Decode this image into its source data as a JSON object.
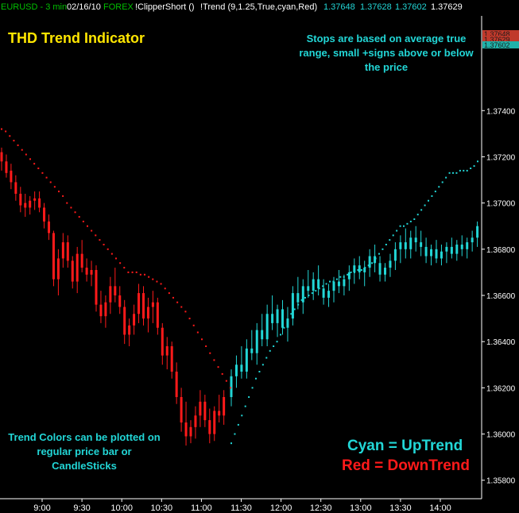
{
  "header": {
    "symbol": "EURUSD - 3 min",
    "date": "02/16/10",
    "source": "FOREX",
    "indicator1": "!ClipperShort ()",
    "indicator2": "!Trend (9,1.25,True,cyan,Red)",
    "quotes": [
      "1.37648",
      "1.37628",
      "1.37602",
      "1.37629"
    ]
  },
  "annotations": {
    "title": "THD Trend Indicator",
    "stops_note": "Stops are based on average true range, small +signs above or below the price",
    "colors_note": "Trend Colors can be plotted on regular price bar or CandleSticks",
    "legend_up": "Cyan = UpTrend",
    "legend_down": "Red = DownTrend"
  },
  "colors": {
    "background": "#000000",
    "uptrend": "#22d6d6",
    "downtrend": "#ff1a1a",
    "title": "#ffe600",
    "axis": "#ffffff",
    "price_tags": [
      "#c0392b",
      "#20b2aa"
    ]
  },
  "chart_data": {
    "type": "candlestick",
    "x_ticks": [
      "9:00",
      "9:30",
      "10:00",
      "10:30",
      "11:00",
      "11:30",
      "12:00",
      "12:30",
      "13:00",
      "13:30",
      "14:00"
    ],
    "y_ticks": [
      "1.37400",
      "1.37200",
      "1.37000",
      "1.36800",
      "1.36600",
      "1.36400",
      "1.36200",
      "1.36000",
      "1.35800"
    ],
    "ylim": [
      1.3572,
      1.3781
    ],
    "price_tags": [
      "1.37648",
      "1.37629",
      "1.37602"
    ],
    "down_candles": [
      [
        1.3722,
        1.3724,
        1.3714,
        1.3718
      ],
      [
        1.3718,
        1.3721,
        1.3711,
        1.3713
      ],
      [
        1.3714,
        1.3717,
        1.3706,
        1.3709
      ],
      [
        1.3709,
        1.3712,
        1.3701,
        1.3704
      ],
      [
        1.3704,
        1.3707,
        1.3696,
        1.3699
      ],
      [
        1.37,
        1.3704,
        1.3694,
        1.3698
      ],
      [
        1.3698,
        1.3703,
        1.3695,
        1.3701
      ],
      [
        1.3701,
        1.3705,
        1.3697,
        1.3702
      ],
      [
        1.3702,
        1.3705,
        1.3696,
        1.3698
      ],
      [
        1.3698,
        1.37,
        1.3689,
        1.3692
      ],
      [
        1.3692,
        1.3695,
        1.3684,
        1.3687
      ],
      [
        1.3687,
        1.3688,
        1.3664,
        1.3667
      ],
      [
        1.3667,
        1.368,
        1.366,
        1.3676
      ],
      [
        1.3676,
        1.3687,
        1.3672,
        1.3683
      ],
      [
        1.3683,
        1.3686,
        1.3672,
        1.3675
      ],
      [
        1.3675,
        1.3677,
        1.3663,
        1.3666
      ],
      [
        1.3666,
        1.3681,
        1.3661,
        1.3678
      ],
      [
        1.3678,
        1.3684,
        1.367,
        1.3672
      ],
      [
        1.3672,
        1.3676,
        1.3666,
        1.3669
      ],
      [
        1.3669,
        1.3675,
        1.3664,
        1.3671
      ],
      [
        1.3671,
        1.3673,
        1.3653,
        1.3656
      ],
      [
        1.3656,
        1.3662,
        1.3648,
        1.3651
      ],
      [
        1.3651,
        1.366,
        1.3646,
        1.3657
      ],
      [
        1.3657,
        1.3668,
        1.3652,
        1.3664
      ],
      [
        1.3664,
        1.3672,
        1.3657,
        1.366
      ],
      [
        1.366,
        1.3664,
        1.3652,
        1.3655
      ],
      [
        1.3655,
        1.3658,
        1.3639,
        1.3643
      ],
      [
        1.3643,
        1.365,
        1.3638,
        1.3647
      ],
      [
        1.3647,
        1.3656,
        1.3643,
        1.3652
      ],
      [
        1.3652,
        1.3665,
        1.3648,
        1.3661
      ],
      [
        1.3661,
        1.3664,
        1.3647,
        1.365
      ],
      [
        1.365,
        1.3659,
        1.3644,
        1.3655
      ],
      [
        1.3655,
        1.3662,
        1.3648,
        1.3657
      ],
      [
        1.3657,
        1.3659,
        1.3643,
        1.3646
      ],
      [
        1.3646,
        1.3648,
        1.363,
        1.3634
      ],
      [
        1.3634,
        1.3642,
        1.3628,
        1.3638
      ],
      [
        1.3638,
        1.364,
        1.3624,
        1.3627
      ],
      [
        1.3627,
        1.3631,
        1.3613,
        1.3616
      ],
      [
        1.3616,
        1.362,
        1.3601,
        1.3605
      ],
      [
        1.3605,
        1.3614,
        1.3595,
        1.3599
      ],
      [
        1.3599,
        1.3606,
        1.3596,
        1.3603
      ],
      [
        1.3603,
        1.3612,
        1.3598,
        1.3608
      ],
      [
        1.3608,
        1.3619,
        1.3603,
        1.3614
      ],
      [
        1.3614,
        1.3617,
        1.3603,
        1.3606
      ],
      [
        1.3606,
        1.3611,
        1.3596,
        1.36
      ],
      [
        1.36,
        1.3612,
        1.3597,
        1.361
      ],
      [
        1.361,
        1.3617,
        1.3605,
        1.3608
      ],
      [
        1.3608,
        1.3619,
        1.3604,
        1.3616
      ]
    ],
    "up_candles": [
      [
        1.3616,
        1.3628,
        1.3612,
        1.3625
      ],
      [
        1.3625,
        1.3634,
        1.362,
        1.363
      ],
      [
        1.363,
        1.3638,
        1.3624,
        1.3627
      ],
      [
        1.3627,
        1.3641,
        1.3624,
        1.3637
      ],
      [
        1.3637,
        1.3645,
        1.3632,
        1.3635
      ],
      [
        1.3635,
        1.3648,
        1.363,
        1.3645
      ],
      [
        1.3645,
        1.3652,
        1.3638,
        1.3641
      ],
      [
        1.3641,
        1.3656,
        1.3638,
        1.3652
      ],
      [
        1.3652,
        1.366,
        1.3645,
        1.3648
      ],
      [
        1.3648,
        1.3656,
        1.3642,
        1.3654
      ],
      [
        1.3654,
        1.3658,
        1.3643,
        1.3646
      ],
      [
        1.3646,
        1.3655,
        1.364,
        1.365
      ],
      [
        1.365,
        1.3664,
        1.3647,
        1.3661
      ],
      [
        1.3661,
        1.3668,
        1.3654,
        1.3657
      ],
      [
        1.3657,
        1.3667,
        1.3652,
        1.3664
      ],
      [
        1.3664,
        1.3671,
        1.3659,
        1.3662
      ],
      [
        1.3662,
        1.367,
        1.3658,
        1.3667
      ],
      [
        1.3667,
        1.3673,
        1.366,
        1.3663
      ],
      [
        1.3663,
        1.3667,
        1.3656,
        1.3659
      ],
      [
        1.3659,
        1.3665,
        1.3655,
        1.3662
      ],
      [
        1.3662,
        1.3668,
        1.3657,
        1.3666
      ],
      [
        1.3666,
        1.3671,
        1.3661,
        1.3664
      ],
      [
        1.3664,
        1.3669,
        1.366,
        1.3667
      ],
      [
        1.3667,
        1.3673,
        1.3662,
        1.367
      ],
      [
        1.367,
        1.3676,
        1.3665,
        1.3673
      ],
      [
        1.3673,
        1.3677,
        1.3667,
        1.367
      ],
      [
        1.367,
        1.3675,
        1.3664,
        1.3672
      ],
      [
        1.3672,
        1.368,
        1.3668,
        1.3677
      ],
      [
        1.3677,
        1.3682,
        1.367,
        1.3674
      ],
      [
        1.3674,
        1.3677,
        1.3666,
        1.3669
      ],
      [
        1.3669,
        1.3674,
        1.3666,
        1.3672
      ],
      [
        1.3672,
        1.3678,
        1.3668,
        1.3675
      ],
      [
        1.3675,
        1.3683,
        1.3671,
        1.368
      ],
      [
        1.368,
        1.3686,
        1.3674,
        1.3683
      ],
      [
        1.3683,
        1.3689,
        1.3676,
        1.368
      ],
      [
        1.368,
        1.3688,
        1.3676,
        1.3685
      ],
      [
        1.3685,
        1.369,
        1.3679,
        1.3683
      ],
      [
        1.3683,
        1.3688,
        1.3677,
        1.3681
      ],
      [
        1.3681,
        1.3685,
        1.3674,
        1.3677
      ],
      [
        1.3677,
        1.3682,
        1.3673,
        1.368
      ],
      [
        1.368,
        1.3684,
        1.3674,
        1.3676
      ],
      [
        1.3676,
        1.3682,
        1.3673,
        1.3679
      ],
      [
        1.3679,
        1.3683,
        1.3674,
        1.3681
      ],
      [
        1.3681,
        1.3685,
        1.3676,
        1.3678
      ],
      [
        1.3678,
        1.3684,
        1.3675,
        1.3682
      ],
      [
        1.3682,
        1.3686,
        1.3677,
        1.368
      ],
      [
        1.368,
        1.3685,
        1.3676,
        1.3683
      ],
      [
        1.3683,
        1.3688,
        1.3679,
        1.3685
      ],
      [
        1.3685,
        1.3692,
        1.3681,
        1.369
      ]
    ],
    "down_stops": [
      1.3732,
      1.3731,
      1.3729,
      1.3727,
      1.3725,
      1.3723,
      1.3721,
      1.3719,
      1.3717,
      1.3715,
      1.3713,
      1.3711,
      1.3709,
      1.3707,
      1.3705,
      1.3703,
      1.37,
      1.3698,
      1.3696,
      1.3694,
      1.3692,
      1.369,
      1.3688,
      1.3686,
      1.3684,
      1.3682,
      1.368,
      1.3678,
      1.3676,
      1.3674,
      1.3672,
      1.367,
      1.367,
      1.367,
      1.3669,
      1.3669,
      1.3668,
      1.3667,
      1.3666,
      1.3665,
      1.3663,
      1.3661,
      1.3659,
      1.3657,
      1.3655,
      1.3653,
      1.365,
      1.3647,
      1.3644,
      1.3641,
      1.3638,
      1.3635,
      1.3632,
      1.3629,
      1.3626,
      1.3623,
      1.362
    ],
    "up_stops": [
      1.3596,
      1.36,
      1.3604,
      1.3608,
      1.3612,
      1.3616,
      1.362,
      1.3624,
      1.3627,
      1.363,
      1.3633,
      1.3636,
      1.3638,
      1.364,
      1.3643,
      1.3646,
      1.3649,
      1.3652,
      1.3654,
      1.3656,
      1.3658,
      1.3659,
      1.366,
      1.3661,
      1.3662,
      1.3663,
      1.3664,
      1.3665,
      1.3666,
      1.3666,
      1.3667,
      1.3668,
      1.3668,
      1.3669,
      1.367,
      1.367,
      1.3671,
      1.3671,
      1.3672,
      1.3673,
      1.3674,
      1.3676,
      1.3678,
      1.368,
      1.3682,
      1.3684,
      1.3686,
      1.3688,
      1.369,
      1.369,
      1.3691,
      1.3692,
      1.3693,
      1.3695,
      1.3697,
      1.3699,
      1.3701,
      1.3703,
      1.3705,
      1.3707,
      1.3709,
      1.3711,
      1.3713,
      1.3713,
      1.3713,
      1.3714,
      1.3714,
      1.3714,
      1.3715,
      1.3716,
      1.3718
    ]
  }
}
